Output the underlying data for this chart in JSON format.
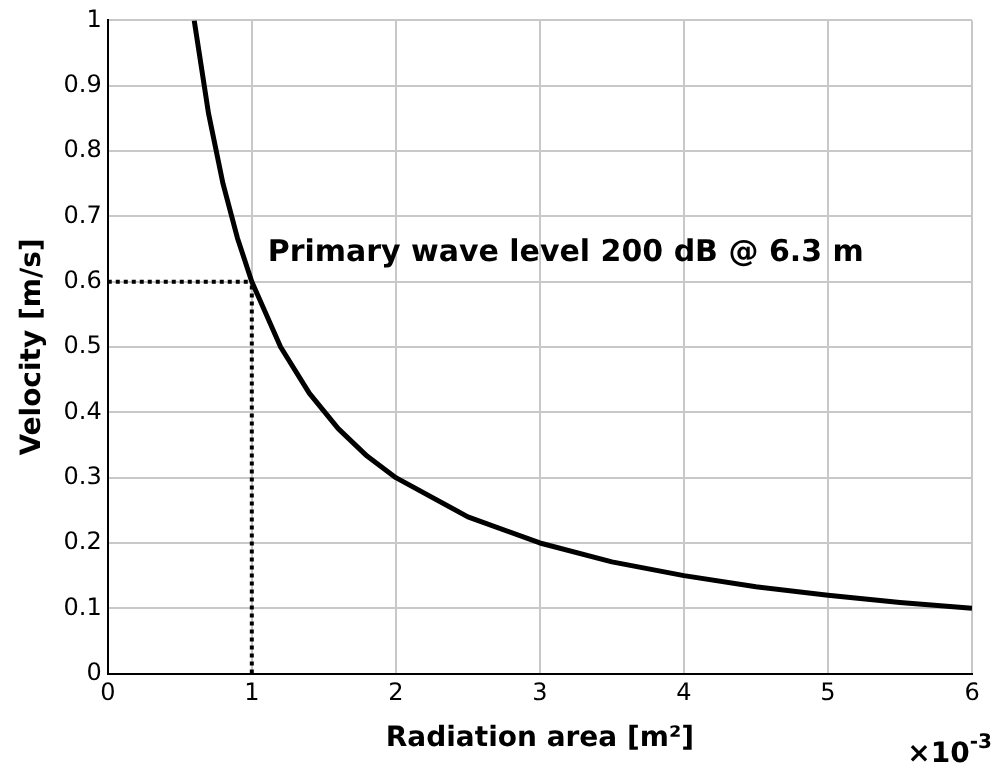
{
  "chart_data": {
    "type": "line",
    "xlabel": "Radiation area [m²]",
    "ylabel": "Velocity [m/s]",
    "xlim": [
      0,
      6
    ],
    "xticks": [
      0,
      1,
      2,
      3,
      4,
      5,
      6
    ],
    "ylim": [
      0,
      1
    ],
    "yticks": [
      0,
      0.1,
      0.2,
      0.3,
      0.4,
      0.5,
      0.6,
      0.7,
      0.8,
      0.9,
      1
    ],
    "grid": true,
    "legend": false,
    "marker": "none",
    "annotations": [
      "Primary wave level 200 dB @ 6.3 m",
      "×10$^{-3}$"
    ],
    "series": [
      {
        "color": "#000000",
        "line_style": "solid",
        "x": [
          0.6,
          0.7,
          0.8,
          0.9,
          1,
          1.2,
          1.4,
          1.6,
          1.8,
          2,
          2.5,
          3,
          3.5,
          4,
          4.5,
          5,
          5.5,
          6
        ],
        "values": [
          1,
          0.857,
          0.75,
          0.667,
          0.6,
          0.5,
          0.429,
          0.375,
          0.333,
          0.3,
          0.24,
          0.2,
          0.171,
          0.15,
          0.133,
          0.12,
          0.109,
          0.1
        ]
      },
      {
        "color": "#000000",
        "line_style": "dotted",
        "x": [
          0,
          1
        ],
        "values": [
          0.6,
          0.6
        ]
      },
      {
        "color": "#000000",
        "line_style": "dotted",
        "x": [
          1,
          1
        ],
        "values": [
          0,
          0.6
        ]
      }
    ]
  }
}
